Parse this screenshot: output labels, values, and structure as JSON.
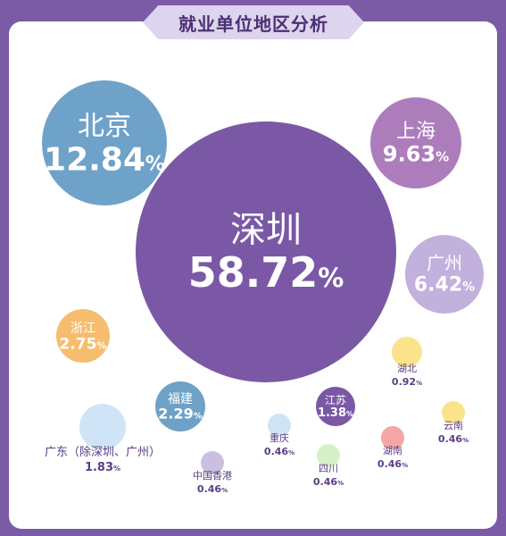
{
  "title": "就业单位地区分析",
  "chart_data": {
    "type": "bubble",
    "title": "就业单位地区分析",
    "unit": "%",
    "regions": [
      {
        "name": "深圳",
        "value": "58.72",
        "color": "#7b58a6",
        "text_color": "#ffffff",
        "label": "inside"
      },
      {
        "name": "北京",
        "value": "12.84",
        "color": "#6fa2c9",
        "text_color": "#ffffff",
        "label": "inside"
      },
      {
        "name": "上海",
        "value": "9.63",
        "color": "#ad7dbb",
        "text_color": "#ffffff",
        "label": "inside"
      },
      {
        "name": "广州",
        "value": "6.42",
        "color": "#c2b0dd",
        "text_color": "#ffffff",
        "label": "inside"
      },
      {
        "name": "浙江",
        "value": "2.75",
        "color": "#f6bd6f",
        "text_color": "#ffffff",
        "label": "inside"
      },
      {
        "name": "福建",
        "value": "2.29",
        "color": "#6ea1c6",
        "text_color": "#ffffff",
        "label": "inside"
      },
      {
        "name": "江苏",
        "value": "1.38",
        "color": "#7b58a6",
        "text_color": "#ffffff",
        "label": "inside"
      },
      {
        "name": "广东（除深圳、广州）",
        "value": "1.83",
        "color": "#cfe5f7",
        "text_color": "#5a3e86",
        "label": "below"
      },
      {
        "name": "湖北",
        "value": "0.92",
        "color": "#fbe38b",
        "text_color": "#5a3e86",
        "label": "below"
      },
      {
        "name": "云南",
        "value": "0.46",
        "color": "#fbe38b",
        "text_color": "#5a3e86",
        "label": "below"
      },
      {
        "name": "湖南",
        "value": "0.46",
        "color": "#f4a5a5",
        "text_color": "#5a3e86",
        "label": "below"
      },
      {
        "name": "四川",
        "value": "0.46",
        "color": "#d6f1c8",
        "text_color": "#5a3e86",
        "label": "below"
      },
      {
        "name": "重庆",
        "value": "0.46",
        "color": "#cfe5f7",
        "text_color": "#5a3e86",
        "label": "below"
      },
      {
        "name": "中国香港",
        "value": "0.46",
        "color": "#cbbfe0",
        "text_color": "#5a3e86",
        "label": "below"
      }
    ]
  }
}
